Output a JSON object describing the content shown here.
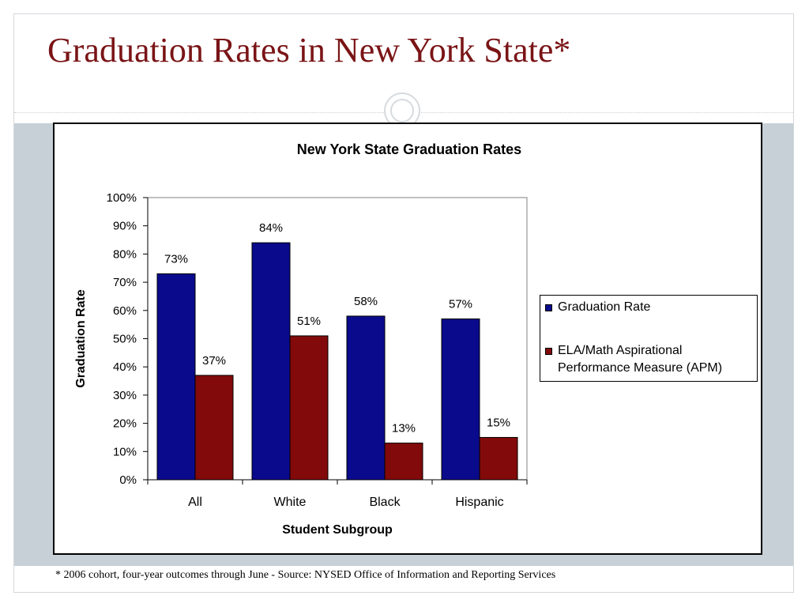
{
  "slide": {
    "title": "Graduation Rates in New York State*",
    "footnote": "* 2006 cohort, four-year outcomes through June - Source: NYSED Office of Information and Reporting Services"
  },
  "colors": {
    "title": "#7a1416",
    "series_blue": "#0a0a8c",
    "series_red": "#820a0a",
    "band": "#c6d0d6"
  },
  "chart_data": {
    "type": "bar",
    "title": "New York State Graduation Rates",
    "xlabel": "Student Subgroup",
    "ylabel": "Graduation Rate",
    "categories": [
      "All",
      "White",
      "Black",
      "Hispanic"
    ],
    "series": [
      {
        "name": "Graduation Rate",
        "values": [
          73,
          84,
          58,
          57
        ],
        "labels": [
          "73%",
          "84%",
          "58%",
          "57%"
        ]
      },
      {
        "name": "ELA/Math Aspirational Performance Measure (APM)",
        "values": [
          37,
          51,
          13,
          15
        ],
        "labels": [
          "37%",
          "51%",
          "13%",
          "15%"
        ]
      }
    ],
    "ylim": [
      0,
      100
    ],
    "yticks": [
      "0%",
      "10%",
      "20%",
      "30%",
      "40%",
      "50%",
      "60%",
      "70%",
      "80%",
      "90%",
      "100%"
    ],
    "grid": false,
    "legend_position": "right"
  }
}
